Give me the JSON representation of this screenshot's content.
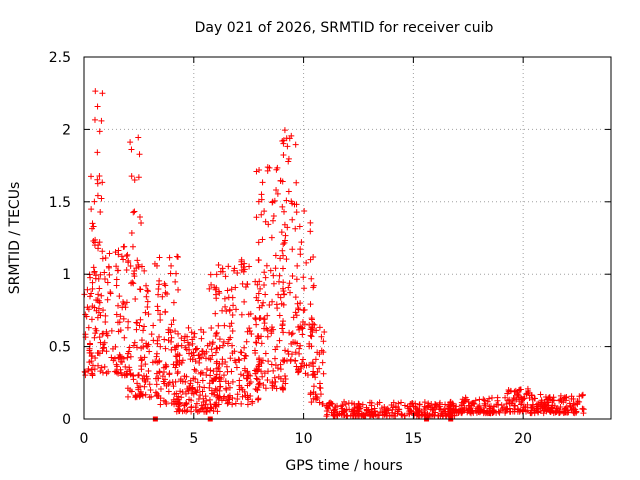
{
  "chart_data": {
    "type": "scatter",
    "title": "Day 021 of 2026, SRMTID for receiver cuib",
    "xlabel": "GPS time / hours",
    "ylabel": "SRMTID / TECUs",
    "xlim": [
      0,
      24
    ],
    "ylim": [
      0,
      2.5
    ],
    "x_ticks": [
      0,
      5,
      10,
      15,
      20
    ],
    "x_tick_labels": [
      "0",
      "5",
      "10",
      "15",
      "20"
    ],
    "y_ticks": [
      0,
      0.5,
      1,
      1.5,
      2,
      2.5
    ],
    "y_tick_labels": [
      "0",
      "0.5",
      "1",
      "1.5",
      "2",
      "2.5"
    ],
    "grid": true,
    "legend": "none",
    "marker": "plus",
    "series_color": "#ff0000",
    "axis_color": "#000000",
    "grid_color": "#a0a0a0",
    "data_gap_markers_x": [
      3.25,
      5.75,
      15.6,
      16.7
    ],
    "segments": [
      {
        "x_start": 0.0,
        "x_end": 0.5,
        "y_low": 0.3,
        "y_high": 1.05,
        "n": 40
      },
      {
        "x_start": 0.3,
        "x_end": 0.9,
        "y_low": 1.0,
        "y_high": 2.3,
        "n": 30
      },
      {
        "x_start": 0.5,
        "x_end": 2.0,
        "y_low": 0.3,
        "y_high": 1.2,
        "n": 120
      },
      {
        "x_start": 2.0,
        "x_end": 2.6,
        "y_low": 1.0,
        "y_high": 1.95,
        "n": 20
      },
      {
        "x_start": 2.0,
        "x_end": 3.4,
        "y_low": 0.15,
        "y_high": 1.1,
        "n": 110
      },
      {
        "x_start": 3.3,
        "x_end": 4.3,
        "y_low": 0.1,
        "y_high": 1.2,
        "n": 90
      },
      {
        "x_start": 4.2,
        "x_end": 6.2,
        "y_low": 0.05,
        "y_high": 0.65,
        "n": 180
      },
      {
        "x_start": 5.7,
        "x_end": 8.0,
        "y_low": 0.1,
        "y_high": 1.1,
        "n": 190
      },
      {
        "x_start": 7.8,
        "x_end": 9.2,
        "y_low": 0.2,
        "y_high": 1.75,
        "n": 140
      },
      {
        "x_start": 9.0,
        "x_end": 9.7,
        "y_low": 0.4,
        "y_high": 2.0,
        "n": 60
      },
      {
        "x_start": 9.6,
        "x_end": 10.5,
        "y_low": 0.3,
        "y_high": 1.5,
        "n": 70
      },
      {
        "x_start": 10.3,
        "x_end": 11.0,
        "y_low": 0.1,
        "y_high": 0.65,
        "n": 40
      },
      {
        "x_start": 11.0,
        "x_end": 17.0,
        "y_low": 0.02,
        "y_high": 0.12,
        "n": 300
      },
      {
        "x_start": 17.0,
        "x_end": 19.2,
        "y_low": 0.04,
        "y_high": 0.15,
        "n": 110
      },
      {
        "x_start": 19.2,
        "x_end": 20.3,
        "y_low": 0.05,
        "y_high": 0.22,
        "n": 70
      },
      {
        "x_start": 20.3,
        "x_end": 22.8,
        "y_low": 0.04,
        "y_high": 0.17,
        "n": 140
      }
    ]
  }
}
